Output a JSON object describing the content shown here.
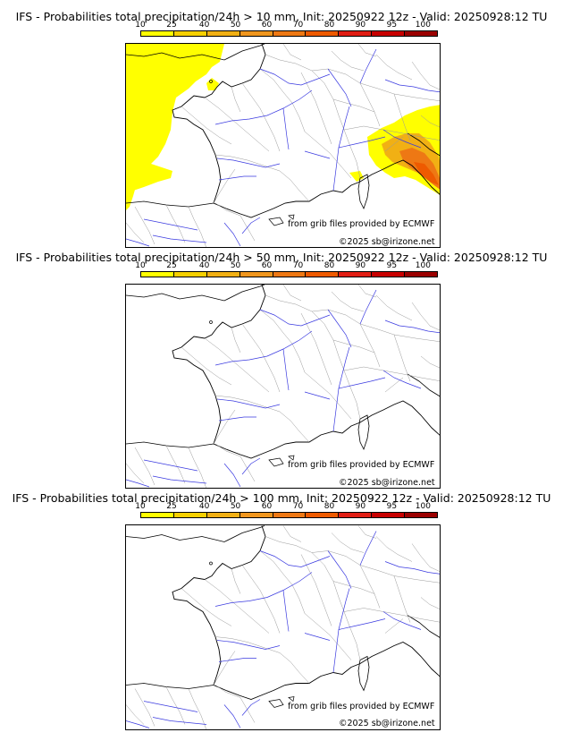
{
  "colorbar": {
    "ticks": [
      "10",
      "25",
      "40",
      "50",
      "60",
      "70",
      "80",
      "90",
      "95",
      "100"
    ],
    "colors": [
      "#ffff00",
      "#f6d000",
      "#f1b014",
      "#f0961e",
      "#ee7814",
      "#ee5a00",
      "#e11e14",
      "#c80000",
      "#9b0000",
      "#640000"
    ]
  },
  "panels": [
    {
      "title": "IFS - Probabilities total precipitation/24h > 10 mm, Init: 20250922 12z - Valid: 20250928:12 TU",
      "grib_credit": "from grib files provided by ECMWF",
      "copyright": "©2025 sb@irizone.net"
    },
    {
      "title": "IFS - Probabilities total precipitation/24h > 50 mm, Init: 20250922 12z - Valid: 20250928:12 TU",
      "grib_credit": "from grib files provided by ECMWF",
      "copyright": "©2025 sb@irizone.net"
    },
    {
      "title": "IFS - Probabilities total precipitation/24h > 100 mm, Init: 20250922 12z - Valid: 20250928:12 TU",
      "grib_credit": "from grib files provided by ECMWF",
      "copyright": "©2025 sb@irizone.net"
    }
  ]
}
